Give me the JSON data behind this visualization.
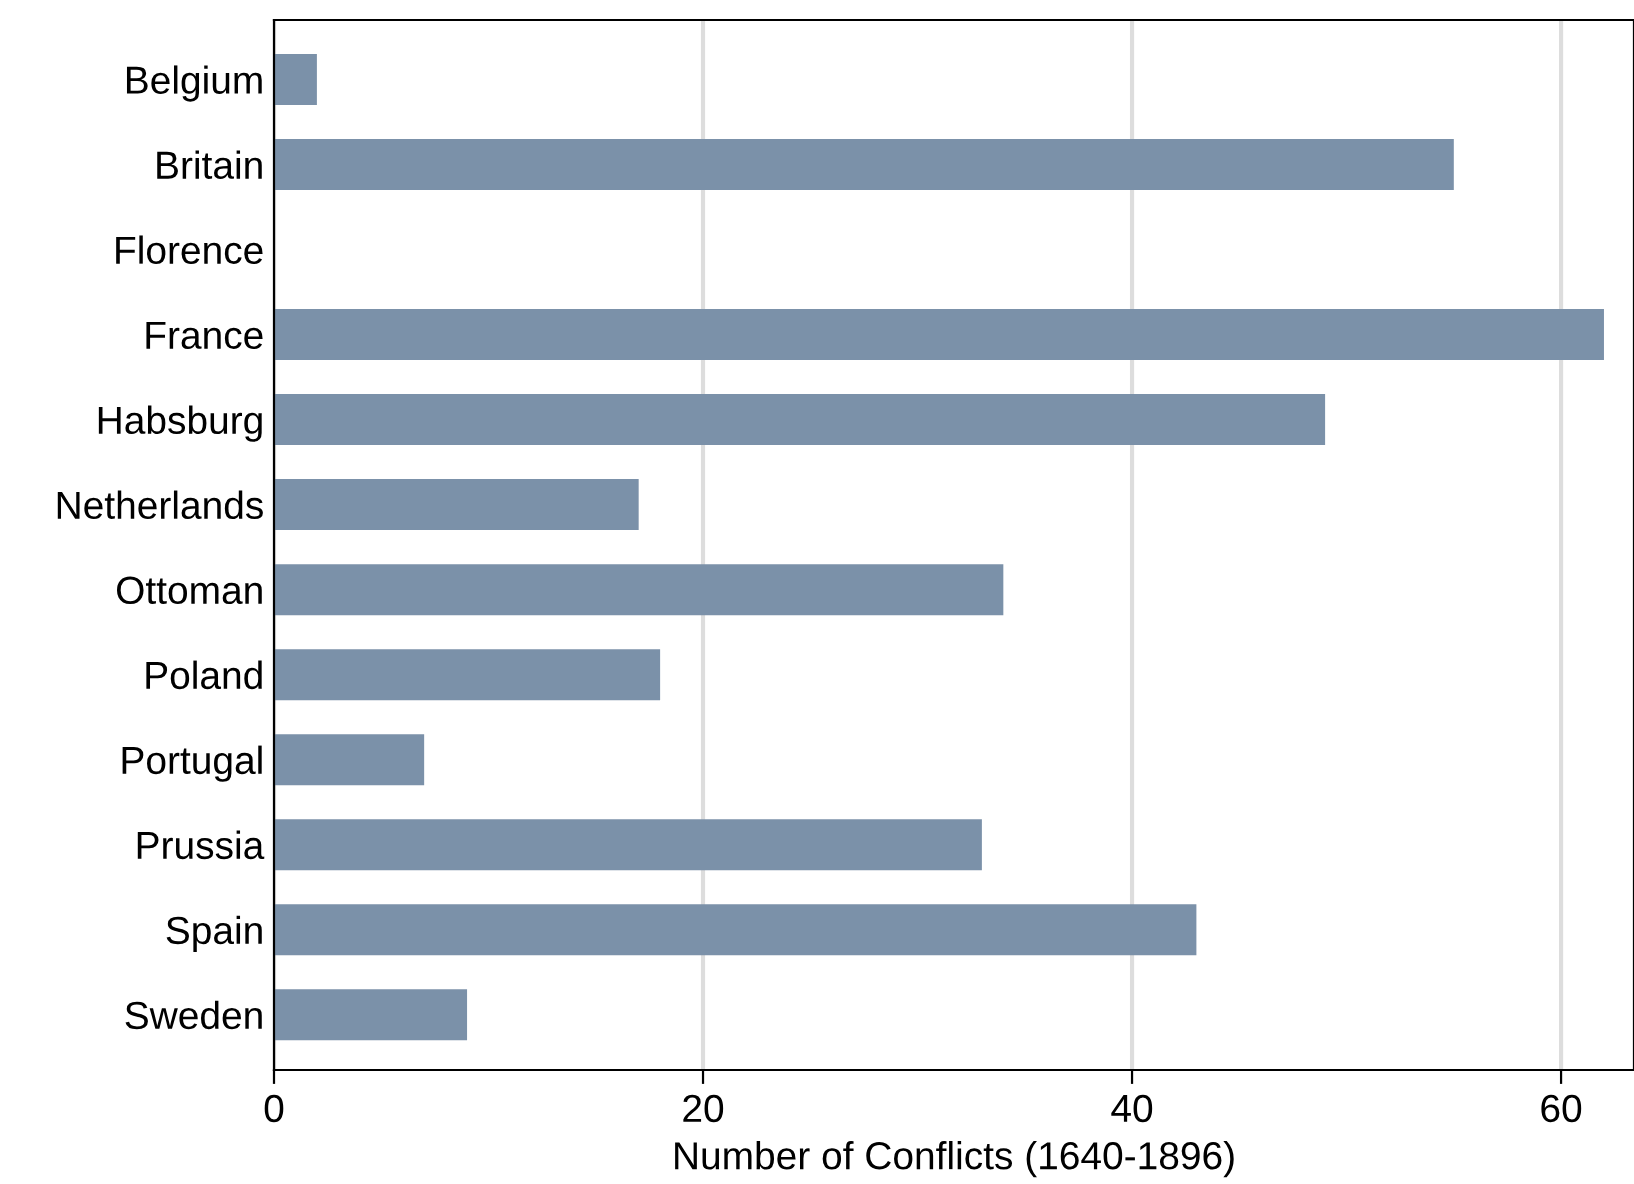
{
  "chart_data": {
    "type": "bar",
    "orientation": "horizontal",
    "xlabel": "Number of Conflicts (1640-1896)",
    "categories": [
      "Belgium",
      "Britain",
      "Florence",
      "France",
      "Habsburg",
      "Netherlands",
      "Ottoman",
      "Poland",
      "Portugal",
      "Prussia",
      "Spain",
      "Sweden"
    ],
    "values": [
      2,
      55,
      0,
      62,
      49,
      17,
      34,
      18,
      7,
      33,
      43,
      9
    ],
    "color": "#7b91a9",
    "xlim": [
      0,
      63.4
    ],
    "xticks": [
      0,
      20,
      40,
      60
    ],
    "grid": "x",
    "legend": false
  }
}
